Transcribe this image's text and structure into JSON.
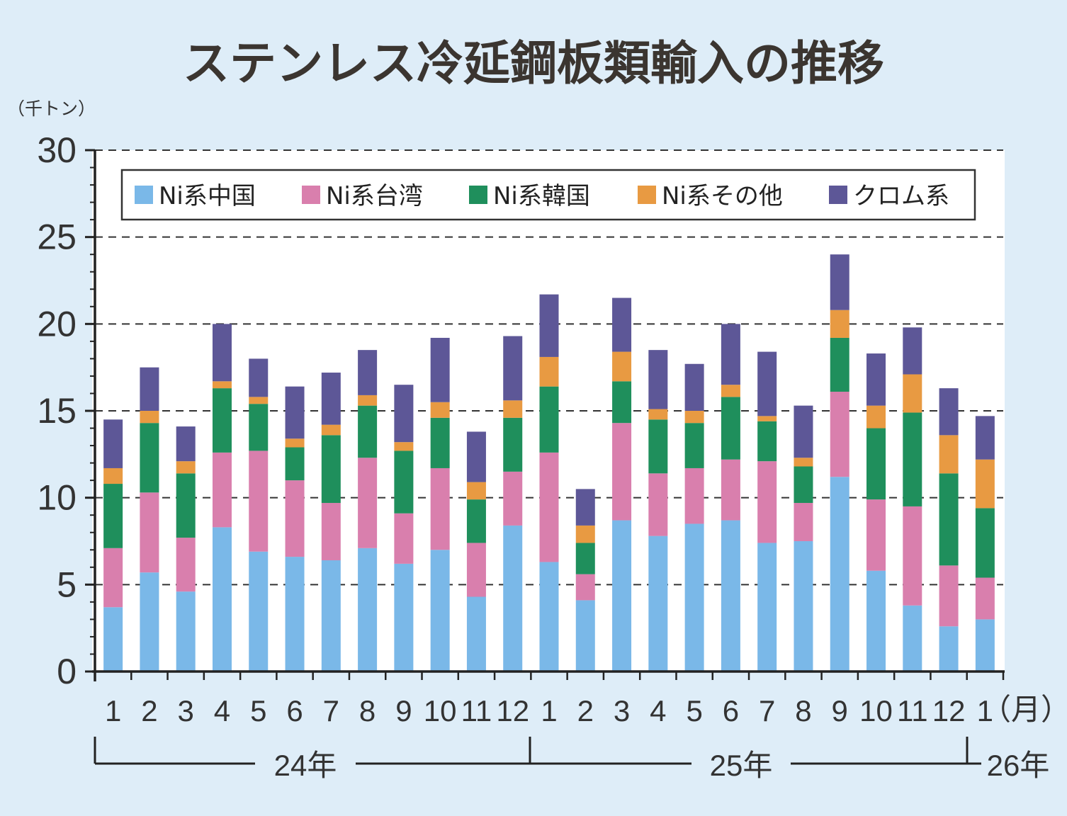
{
  "chart_data": {
    "type": "bar",
    "stacked": true,
    "title": "ステンレス冷延鋼板類輸入の推移",
    "ylabel": "（千トン）",
    "xlabel": "（月）",
    "ylim": [
      0,
      30
    ],
    "yticks": [
      0,
      5,
      10,
      15,
      20,
      25,
      30
    ],
    "grid": true,
    "legend_position": "top",
    "categories": [
      "1",
      "2",
      "3",
      "4",
      "5",
      "6",
      "7",
      "8",
      "9",
      "10",
      "11",
      "12",
      "1",
      "2",
      "3",
      "4",
      "5",
      "6",
      "7",
      "8",
      "9",
      "10",
      "11",
      "12",
      "1"
    ],
    "year_groups": [
      {
        "label": "24年",
        "start": 0,
        "end": 11
      },
      {
        "label": "25年",
        "start": 12,
        "end": 23
      },
      {
        "label": "26年",
        "start": 24,
        "end": 24
      }
    ],
    "series": [
      {
        "name": "Ni系中国",
        "color": "#7ab8e8",
        "values": [
          3.7,
          5.7,
          4.6,
          8.3,
          6.9,
          6.6,
          6.4,
          7.1,
          6.2,
          7.0,
          4.3,
          8.4,
          6.3,
          4.1,
          8.7,
          7.8,
          8.5,
          8.7,
          7.4,
          7.5,
          11.2,
          5.8,
          3.8,
          2.6,
          3.0
        ]
      },
      {
        "name": "Ni系台湾",
        "color": "#d97fad",
        "values": [
          3.4,
          4.6,
          3.1,
          4.3,
          5.8,
          4.4,
          3.3,
          5.2,
          2.9,
          4.7,
          3.1,
          3.1,
          6.3,
          1.5,
          5.6,
          3.6,
          3.2,
          3.5,
          4.7,
          2.2,
          4.9,
          4.1,
          5.7,
          3.5,
          2.4
        ]
      },
      {
        "name": "Ni系韓国",
        "color": "#1f8f5c",
        "values": [
          3.7,
          4.0,
          3.7,
          3.7,
          2.7,
          1.9,
          3.9,
          3.0,
          3.6,
          2.9,
          2.5,
          3.1,
          3.8,
          1.8,
          2.4,
          3.1,
          2.6,
          3.6,
          2.3,
          2.1,
          3.1,
          4.1,
          5.4,
          5.3,
          4.0
        ]
      },
      {
        "name": "Ni系その他",
        "color": "#e89a42",
        "values": [
          0.9,
          0.7,
          0.7,
          0.4,
          0.4,
          0.5,
          0.6,
          0.6,
          0.5,
          0.9,
          1.0,
          1.0,
          1.7,
          1.0,
          1.7,
          0.6,
          0.7,
          0.7,
          0.3,
          0.5,
          1.6,
          1.3,
          2.2,
          2.2,
          2.8
        ]
      },
      {
        "name": "クロム系",
        "color": "#5d5797",
        "values": [
          2.8,
          2.5,
          2.0,
          3.3,
          2.2,
          3.0,
          3.0,
          2.6,
          3.3,
          3.7,
          2.9,
          3.7,
          3.6,
          2.1,
          3.1,
          3.4,
          2.7,
          3.5,
          3.7,
          3.0,
          3.2,
          3.0,
          2.7,
          2.7,
          2.5
        ]
      }
    ]
  }
}
